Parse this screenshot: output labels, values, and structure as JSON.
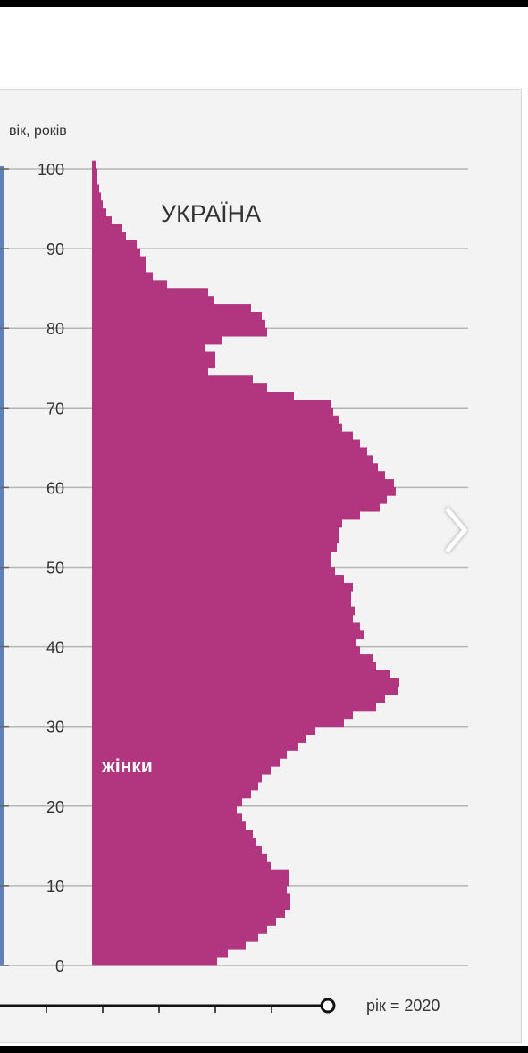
{
  "chart_data": {
    "type": "bar",
    "orientation": "horizontal",
    "title": "УКРАЇНА",
    "ylabel": "вік, років",
    "series": [
      {
        "name": "жінки",
        "color": "#b1367f",
        "ages": [
          0,
          1,
          2,
          3,
          4,
          5,
          6,
          7,
          8,
          9,
          10,
          11,
          12,
          13,
          14,
          15,
          16,
          17,
          18,
          19,
          20,
          21,
          22,
          23,
          24,
          25,
          26,
          27,
          28,
          29,
          30,
          31,
          32,
          33,
          34,
          35,
          36,
          37,
          38,
          39,
          40,
          41,
          42,
          43,
          44,
          45,
          46,
          47,
          48,
          49,
          50,
          51,
          52,
          53,
          54,
          55,
          56,
          57,
          58,
          59,
          60,
          61,
          62,
          63,
          64,
          65,
          66,
          67,
          68,
          69,
          70,
          71,
          72,
          73,
          74,
          75,
          76,
          77,
          78,
          79,
          80,
          81,
          82,
          83,
          84,
          85,
          86,
          87,
          88,
          89,
          90,
          91,
          92,
          93,
          94,
          95,
          96,
          97,
          98,
          99,
          100
        ],
        "values": [
          140,
          152,
          172,
          186,
          196,
          206,
          216,
          222,
          222,
          218,
          220,
          220,
          200,
          196,
          190,
          184,
          180,
          172,
          168,
          162,
          168,
          178,
          186,
          190,
          200,
          210,
          218,
          230,
          240,
          250,
          282,
          292,
          318,
          328,
          342,
          344,
          334,
          318,
          314,
          300,
          296,
          304,
          300,
          292,
          294,
          290,
          290,
          292,
          282,
          272,
          268,
          268,
          274,
          276,
          276,
          280,
          300,
          322,
          330,
          340,
          338,
          328,
          320,
          314,
          308,
          300,
          292,
          280,
          276,
          270,
          268,
          226,
          196,
          180,
          130,
          138,
          138,
          126,
          146,
          196,
          194,
          190,
          178,
          136,
          130,
          84,
          68,
          60,
          60,
          54,
          50,
          38,
          34,
          22,
          16,
          12,
          10,
          8,
          6,
          6,
          4
        ]
      }
    ],
    "yticks": [
      0,
      10,
      20,
      30,
      40,
      50,
      60,
      70,
      80,
      90,
      100
    ],
    "ylim": [
      0,
      100
    ],
    "legend_label": "жінки",
    "slider_label": "рік = 2020"
  },
  "colors": {
    "bar": "#b1367f",
    "male_bar": "#5d82b5",
    "grid": "#b5b5b5",
    "background": "#f3f3f3"
  },
  "next_icon": "chevron-right-icon"
}
